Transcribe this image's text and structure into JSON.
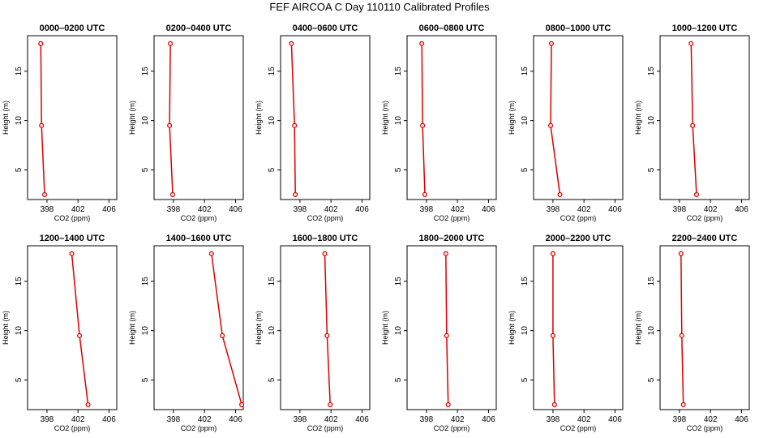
{
  "figure_title": "FEF AIRCOA C  Day 110110  Calibrated Profiles",
  "chart_data": {
    "type": "line",
    "title": "FEF AIRCOA C  Day 110110  Calibrated Profiles",
    "xlabel": "CO2 (ppm)",
    "ylabel": "Height (m)",
    "xlim": [
      395.5,
      407.0
    ],
    "ylim": [
      2.0,
      18.6
    ],
    "xticks": [
      398,
      402,
      406
    ],
    "yticks": [
      5,
      10,
      15
    ],
    "series_color": "#dd0000",
    "panels": [
      {
        "title": "0000–0200 UTC",
        "points": [
          {
            "x": 397.7,
            "y": 2.5
          },
          {
            "x": 397.3,
            "y": 9.5
          },
          {
            "x": 397.2,
            "y": 17.8
          }
        ]
      },
      {
        "title": "0200–0400 UTC",
        "points": [
          {
            "x": 397.9,
            "y": 2.5
          },
          {
            "x": 397.5,
            "y": 9.5
          },
          {
            "x": 397.6,
            "y": 17.8
          }
        ]
      },
      {
        "title": "0400–0600 UTC",
        "points": [
          {
            "x": 397.4,
            "y": 2.5
          },
          {
            "x": 397.3,
            "y": 9.5
          },
          {
            "x": 396.9,
            "y": 17.8
          }
        ]
      },
      {
        "title": "0600–0800 UTC",
        "points": [
          {
            "x": 397.8,
            "y": 2.5
          },
          {
            "x": 397.5,
            "y": 9.5
          },
          {
            "x": 397.4,
            "y": 17.8
          }
        ]
      },
      {
        "title": "0800–1000 UTC",
        "points": [
          {
            "x": 398.9,
            "y": 2.5
          },
          {
            "x": 397.7,
            "y": 9.5
          },
          {
            "x": 397.8,
            "y": 17.8
          }
        ]
      },
      {
        "title": "1000–1200 UTC",
        "points": [
          {
            "x": 400.2,
            "y": 2.5
          },
          {
            "x": 399.7,
            "y": 9.5
          },
          {
            "x": 399.5,
            "y": 17.8
          }
        ]
      },
      {
        "title": "1200–1400 UTC",
        "points": [
          {
            "x": 403.3,
            "y": 2.5
          },
          {
            "x": 402.2,
            "y": 9.5
          },
          {
            "x": 401.2,
            "y": 17.8
          }
        ]
      },
      {
        "title": "1400–1600 UTC",
        "points": [
          {
            "x": 406.8,
            "y": 2.5
          },
          {
            "x": 404.3,
            "y": 9.5
          },
          {
            "x": 402.9,
            "y": 17.8
          }
        ]
      },
      {
        "title": "1600–1800 UTC",
        "points": [
          {
            "x": 401.9,
            "y": 2.5
          },
          {
            "x": 401.5,
            "y": 9.5
          },
          {
            "x": 401.2,
            "y": 17.8
          }
        ]
      },
      {
        "title": "1800–2000 UTC",
        "points": [
          {
            "x": 400.8,
            "y": 2.5
          },
          {
            "x": 400.6,
            "y": 9.5
          },
          {
            "x": 400.5,
            "y": 17.8
          }
        ]
      },
      {
        "title": "2000–2200 UTC",
        "points": [
          {
            "x": 398.2,
            "y": 2.5
          },
          {
            "x": 398.0,
            "y": 9.5
          },
          {
            "x": 398.0,
            "y": 17.8
          }
        ]
      },
      {
        "title": "2200–2400 UTC",
        "points": [
          {
            "x": 398.5,
            "y": 2.5
          },
          {
            "x": 398.3,
            "y": 9.5
          },
          {
            "x": 398.2,
            "y": 17.8
          }
        ]
      }
    ]
  }
}
